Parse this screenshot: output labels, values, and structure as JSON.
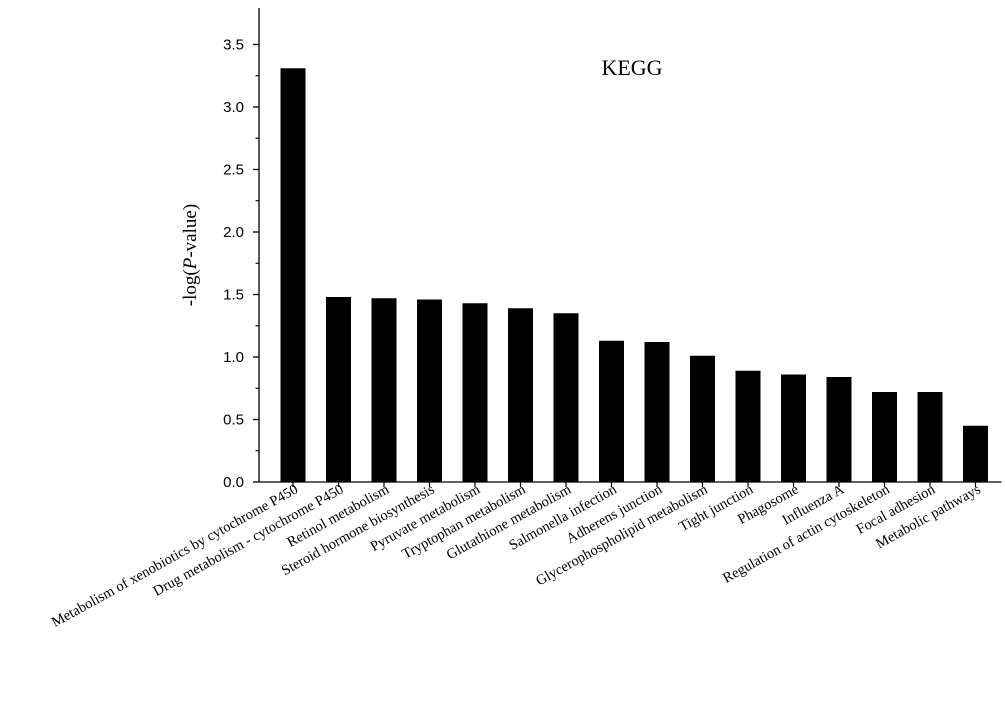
{
  "chart_data": {
    "type": "bar",
    "title": "KEGG",
    "xlabel": "",
    "ylabel_prefix": "-log(",
    "ylabel_italic": "P",
    "ylabel_suffix": "-value)",
    "ylim": [
      0,
      3.6
    ],
    "yticks": [
      "0.0",
      "0.5",
      "1.0",
      "1.5",
      "2.0",
      "2.5",
      "3.0",
      "3.5"
    ],
    "grid": false,
    "bar_color": "#000000",
    "categories": [
      "Metabolism of xenobiotics by cytochrome P450",
      "Drug metabolism - cytochrome P450",
      "Retinol metabolism",
      "Steroid hormone biosynthesis",
      "Pyruvate metabolism",
      "Tryptophan metabolism",
      "Glutathione metabolism",
      "Salmonella infection",
      "Adherens junction",
      "Glycerophospholipid metabolism",
      "Tight junction",
      "Phagosome",
      "Influenza A",
      "Regulation of actin cytoskeleton",
      "Focal adhesion",
      "Metabolic pathways"
    ],
    "values": [
      3.31,
      1.48,
      1.47,
      1.46,
      1.43,
      1.39,
      1.35,
      1.13,
      1.12,
      1.01,
      0.89,
      0.86,
      0.84,
      0.72,
      0.72,
      0.45
    ]
  }
}
